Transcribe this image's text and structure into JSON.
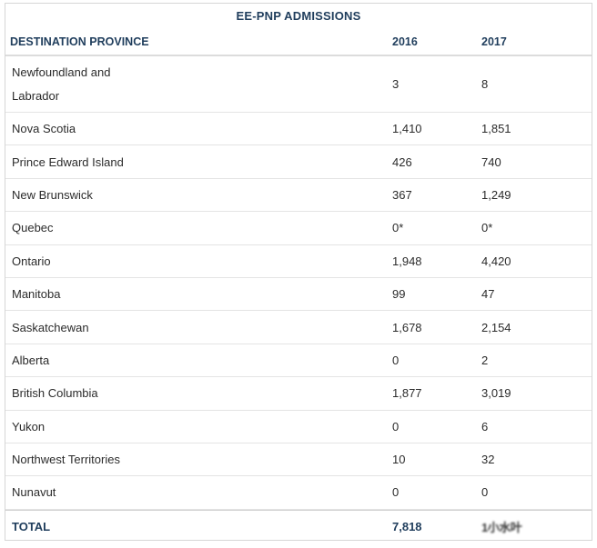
{
  "table": {
    "caption": "EE-PNP ADMISSIONS",
    "headers": [
      "DESTINATION PROVINCE",
      "2016",
      "2017"
    ],
    "rows": [
      {
        "province": "Newfoundland and Labrador",
        "y2016": "3",
        "y2017": "8"
      },
      {
        "province": "Nova Scotia",
        "y2016": "1,410",
        "y2017": "1,851"
      },
      {
        "province": "Prince Edward Island",
        "y2016": "426",
        "y2017": "740"
      },
      {
        "province": "New Brunswick",
        "y2016": "367",
        "y2017": "1,249"
      },
      {
        "province": "Quebec",
        "y2016": "0*",
        "y2017": "0*"
      },
      {
        "province": "Ontario",
        "y2016": "1,948",
        "y2017": "4,420"
      },
      {
        "province": "Manitoba",
        "y2016": "99",
        "y2017": "47"
      },
      {
        "province": "Saskatchewan",
        "y2016": "1,678",
        "y2017": "2,154"
      },
      {
        "province": "Alberta",
        "y2016": "0",
        "y2017": "2"
      },
      {
        "province": "British Columbia",
        "y2016": "1,877",
        "y2017": "3,019"
      },
      {
        "province": "Yukon",
        "y2016": "0",
        "y2017": "6"
      },
      {
        "province": "Northwest Territories",
        "y2016": "10",
        "y2017": "32"
      },
      {
        "province": "Nunavut",
        "y2016": "0",
        "y2017": "0"
      }
    ],
    "total": {
      "label": "TOTAL",
      "y2016": "7,818",
      "y2017": "1小水叶"
    }
  },
  "colors": {
    "heading": "#1f3d5c",
    "text": "#2b2b2b",
    "rule": "#e4e4e4"
  }
}
